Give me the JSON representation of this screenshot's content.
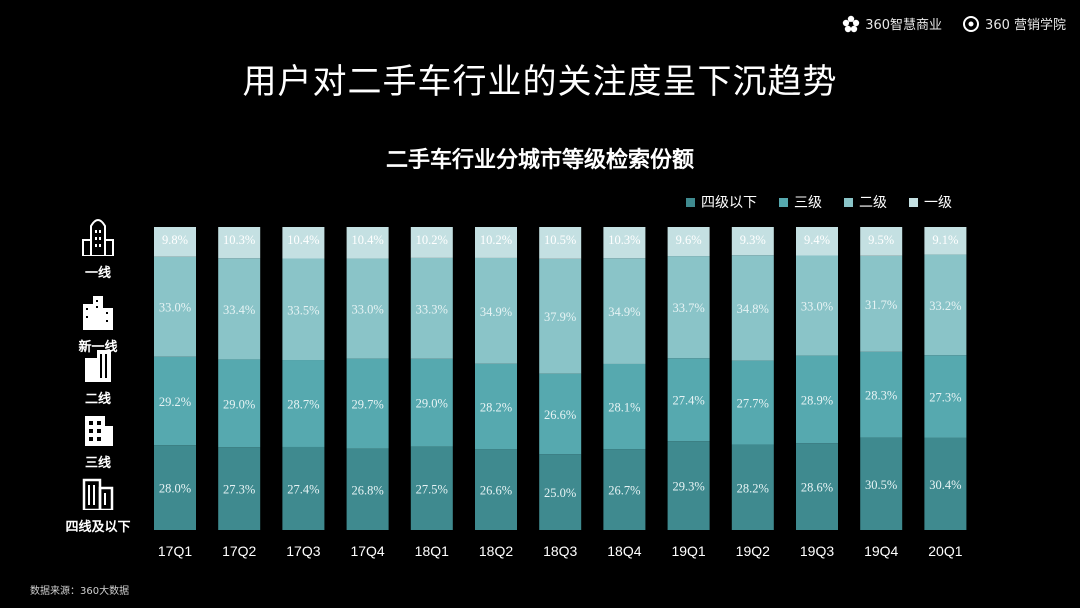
{
  "brand": {
    "logo1_text": "360智慧商业",
    "logo2_text": "360 营销学院"
  },
  "header": {
    "title": "用户对二手车行业的关注度呈下沉趋势",
    "subtitle": "二手车行业分城市等级检索份额"
  },
  "source_note": "数据来源：360大数据",
  "side_labels": [
    "一线",
    "新一线",
    "二线",
    "三线",
    "四线及以下"
  ],
  "icons": [
    "city-building-icon",
    "city-skyline-icon",
    "office-tower-icon",
    "apartment-building-icon",
    "low-rise-building-icon"
  ],
  "chart_data": {
    "type": "bar",
    "stacked": true,
    "normalized": true,
    "title": "二手车行业分城市等级检索份额",
    "categories": [
      "17Q1",
      "17Q2",
      "17Q3",
      "17Q4",
      "18Q1",
      "18Q2",
      "18Q3",
      "18Q4",
      "19Q1",
      "19Q2",
      "19Q3",
      "19Q4",
      "20Q1"
    ],
    "series": [
      {
        "name": "四级以下",
        "color": "#3f8a8f",
        "values": [
          28.0,
          27.3,
          27.4,
          26.8,
          27.5,
          26.6,
          25.0,
          26.7,
          29.3,
          28.2,
          28.6,
          30.5,
          30.4
        ]
      },
      {
        "name": "三级",
        "color": "#56a9af",
        "values": [
          29.2,
          29.0,
          28.7,
          29.7,
          29.0,
          28.2,
          26.6,
          28.1,
          27.4,
          27.7,
          28.9,
          28.3,
          27.3
        ]
      },
      {
        "name": "二级",
        "color": "#8ac4c8",
        "values": [
          33.0,
          33.4,
          33.5,
          33.0,
          33.3,
          34.9,
          37.9,
          34.9,
          33.7,
          34.8,
          33.0,
          31.7,
          33.2
        ]
      },
      {
        "name": "一级",
        "color": "#c4e0e2",
        "values": [
          9.8,
          10.3,
          10.4,
          10.4,
          10.2,
          10.2,
          10.5,
          10.3,
          9.6,
          9.3,
          9.4,
          9.5,
          9.1
        ]
      }
    ],
    "value_suffix": "%",
    "legend_position": "top-right",
    "grid": false
  }
}
